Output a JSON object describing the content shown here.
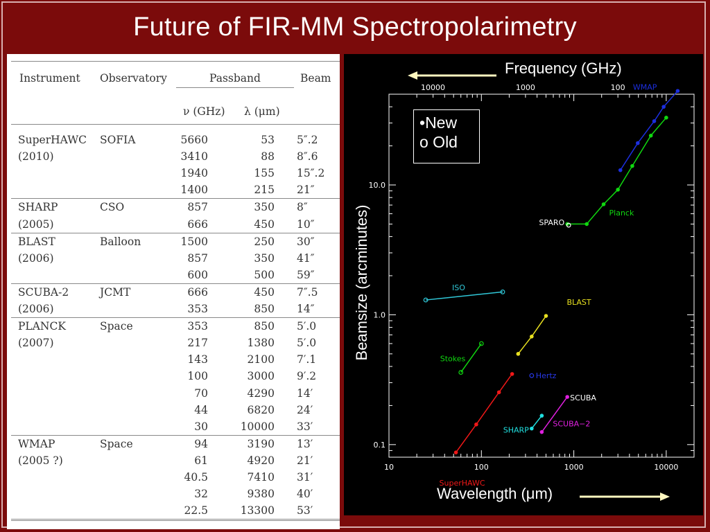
{
  "slide": {
    "title": "Future of FIR-MM Spectropolarimetry",
    "colors": {
      "background": "#7b0b0b",
      "table_bg": "#ffffff",
      "chart_bg": "#000000"
    }
  },
  "table": {
    "headers": {
      "instrument": "Instrument",
      "observatory": "Observatory",
      "passband": "Passband",
      "beam": "Beam",
      "nu": "ν (GHz)",
      "lambda": "λ (μm)"
    },
    "groups": [
      {
        "instrument": "SuperHAWC",
        "year": "(2010)",
        "observatory": "SOFIA",
        "rows": [
          [
            "5660",
            "53",
            "5″.2"
          ],
          [
            "3410",
            "88",
            "8″.6"
          ],
          [
            "1940",
            "155",
            "15″.2"
          ],
          [
            "1400",
            "215",
            "21″"
          ]
        ]
      },
      {
        "instrument": "SHARP",
        "year": "(2005)",
        "observatory": "CSO",
        "rows": [
          [
            "857",
            "350",
            "8″"
          ],
          [
            "666",
            "450",
            "10″"
          ]
        ]
      },
      {
        "instrument": "BLAST",
        "year": "(2006)",
        "observatory": "Balloon",
        "rows": [
          [
            "1500",
            "250",
            "30″"
          ],
          [
            "857",
            "350",
            "41″"
          ],
          [
            "600",
            "500",
            "59″"
          ]
        ]
      },
      {
        "instrument": "SCUBA-2",
        "year": "(2006)",
        "observatory": "JCMT",
        "rows": [
          [
            "666",
            "450",
            "7″.5"
          ],
          [
            "353",
            "850",
            "14″"
          ]
        ]
      },
      {
        "instrument": "PLANCK",
        "year": "(2007)",
        "observatory": "Space",
        "rows": [
          [
            "353",
            "850",
            "5′.0"
          ],
          [
            "217",
            "1380",
            "5′.0"
          ],
          [
            "143",
            "2100",
            "7′.1"
          ],
          [
            "100",
            "3000",
            "9′.2"
          ],
          [
            "70",
            "4290",
            "14′"
          ],
          [
            "44",
            "6820",
            "24′"
          ],
          [
            "30",
            "10000",
            "33′"
          ]
        ]
      },
      {
        "instrument": "WMAP",
        "year": "(2005 ?)",
        "observatory": "Space",
        "rows": [
          [
            "94",
            "3190",
            "13′"
          ],
          [
            "61",
            "4920",
            "21′"
          ],
          [
            "40.5",
            "7410",
            "31′"
          ],
          [
            "32",
            "9380",
            "40′"
          ],
          [
            "22.5",
            "13300",
            "53′"
          ]
        ]
      }
    ]
  },
  "chart_data": {
    "type": "line",
    "xlabel": "Wavelength (μm)",
    "ylabel": "Beamsize (arcminutes)",
    "top_axis_label": "Frequency (GHz)",
    "x_scale": "log",
    "y_scale": "log",
    "xlim": [
      10,
      20000
    ],
    "ylim": [
      0.08,
      50
    ],
    "x_ticks": [
      "10",
      "100",
      "1000",
      "10000"
    ],
    "y_ticks": [
      "0.1",
      "1.0",
      "10.0"
    ],
    "top_ticks": [
      "10000",
      "1000",
      "100"
    ],
    "legend": {
      "new": "New",
      "old": "o Old",
      "new_marker": "•"
    },
    "series": [
      {
        "name": "WMAP",
        "color": "#1c2fe0",
        "marker": "filled",
        "x": [
          3190,
          4920,
          7410,
          9380,
          13300
        ],
        "y": [
          13,
          21,
          31,
          40,
          53
        ]
      },
      {
        "name": "Planck",
        "color": "#10d810",
        "marker": "filled",
        "x": [
          850,
          1380,
          2100,
          3000,
          4290,
          6820,
          10000
        ],
        "y": [
          5.0,
          5.0,
          7.1,
          9.2,
          14,
          24,
          33
        ]
      },
      {
        "name": "SPARO",
        "color": "#ffffff",
        "marker": "open",
        "x": [
          880
        ],
        "y": [
          4.9
        ]
      },
      {
        "name": "ISO",
        "color": "#30c8d8",
        "marker": "open",
        "x": [
          25,
          170
        ],
        "y": [
          1.3,
          1.5
        ]
      },
      {
        "name": "BLAST",
        "color": "#e8e020",
        "marker": "filled",
        "x": [
          250,
          350,
          500
        ],
        "y": [
          0.5,
          0.68,
          0.98
        ]
      },
      {
        "name": "Stokes",
        "color": "#10d810",
        "marker": "open",
        "x": [
          60,
          100
        ],
        "y": [
          0.36,
          0.6
        ]
      },
      {
        "name": "Hertz",
        "color": "#2838e8",
        "marker": "open",
        "x": [
          350
        ],
        "y": [
          0.34
        ]
      },
      {
        "name": "SuperHAWC",
        "color": "#f01818",
        "marker": "filled",
        "x": [
          53,
          88,
          155,
          215
        ],
        "y": [
          0.087,
          0.143,
          0.253,
          0.35
        ]
      },
      {
        "name": "SCUBA",
        "color": "#ffffff",
        "marker": "none",
        "x": [
          850
        ],
        "y": [
          0.23
        ]
      },
      {
        "name": "SHARP",
        "color": "#20e0e0",
        "marker": "filled",
        "x": [
          350,
          450
        ],
        "y": [
          0.133,
          0.167
        ]
      },
      {
        "name": "SCUBA−2",
        "color": "#e020e0",
        "marker": "filled",
        "x": [
          450,
          850
        ],
        "y": [
          0.125,
          0.233
        ]
      }
    ]
  }
}
